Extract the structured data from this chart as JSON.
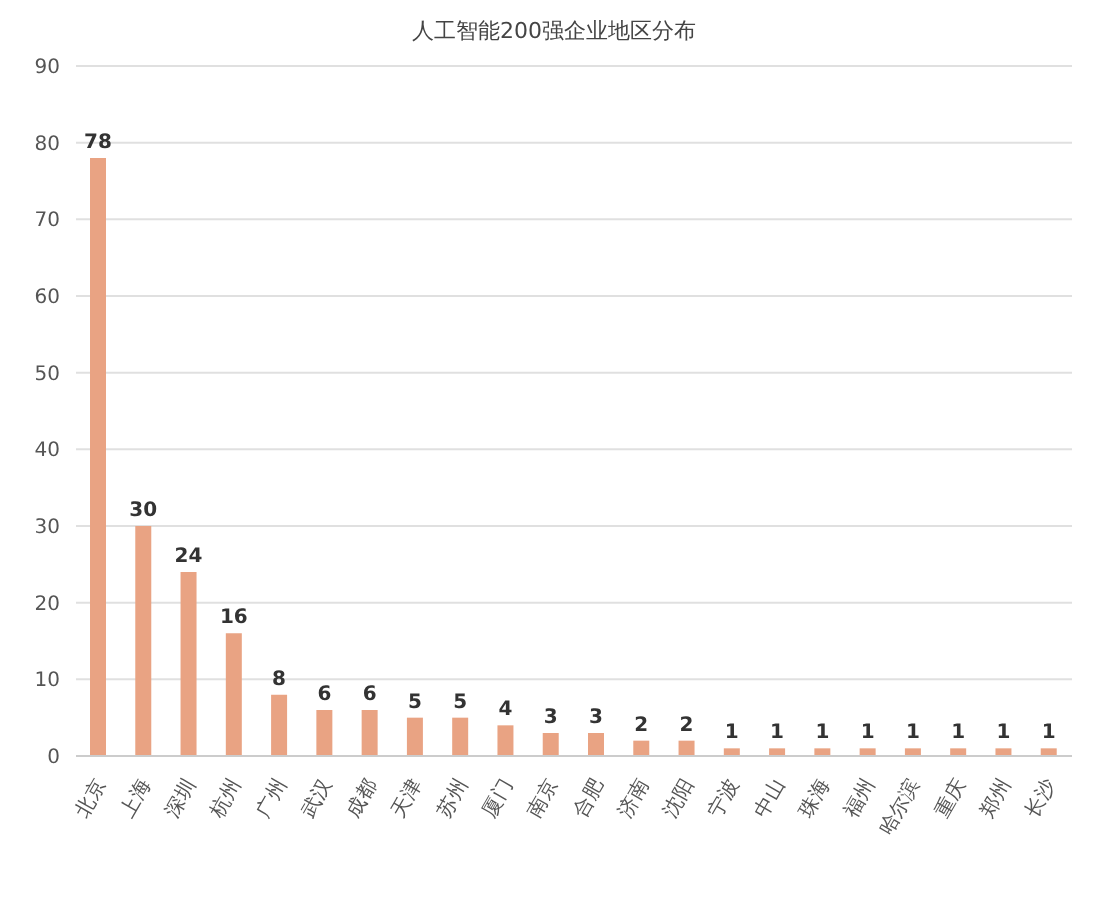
{
  "chart_data": {
    "type": "bar",
    "title": "人工智能200强企业地区分布",
    "categories": [
      "北京",
      "上海",
      "深圳",
      "杭州",
      "广州",
      "武汉",
      "成都",
      "天津",
      "苏州",
      "厦门",
      "南京",
      "合肥",
      "济南",
      "沈阳",
      "宁波",
      "中山",
      "珠海",
      "福州",
      "哈尔滨",
      "重庆",
      "郑州",
      "长沙"
    ],
    "values": [
      78,
      30,
      24,
      16,
      8,
      6,
      6,
      5,
      5,
      4,
      3,
      3,
      2,
      2,
      1,
      1,
      1,
      1,
      1,
      1,
      1,
      1
    ],
    "color": "#e9a383",
    "ylim": [
      0,
      90
    ],
    "yticks": [
      0,
      10,
      20,
      30,
      40,
      50,
      60,
      70,
      80,
      90
    ],
    "grid": "y",
    "data_labels": true
  }
}
